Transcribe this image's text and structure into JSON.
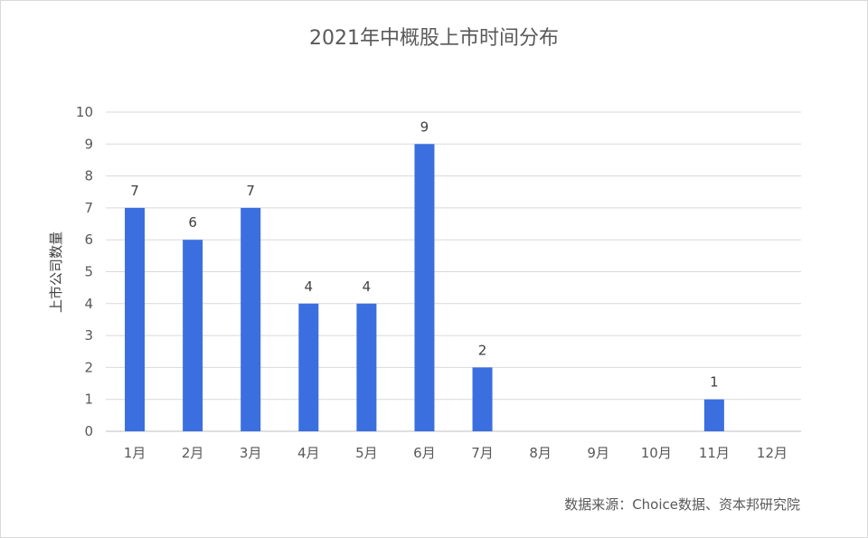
{
  "chart_data": {
    "type": "bar",
    "title": "2021年中概股上市时间分布",
    "ylabel": "上市公司数量",
    "xlabel": "",
    "categories": [
      "1月",
      "2月",
      "3月",
      "4月",
      "5月",
      "6月",
      "7月",
      "8月",
      "9月",
      "10月",
      "11月",
      "12月"
    ],
    "values": [
      7,
      6,
      7,
      4,
      4,
      9,
      2,
      0,
      0,
      0,
      1,
      0
    ],
    "data_labels": [
      "7",
      "6",
      "7",
      "4",
      "4",
      "9",
      "2",
      "",
      "",
      "",
      "1",
      ""
    ],
    "ylim": [
      0,
      10
    ],
    "yticks": [
      0,
      1,
      2,
      3,
      4,
      5,
      6,
      7,
      8,
      9,
      10
    ],
    "grid": true,
    "legend": "none",
    "bar_color": "#3b6fe0",
    "source": "数据来源：Choice数据、资本邦研究院"
  }
}
